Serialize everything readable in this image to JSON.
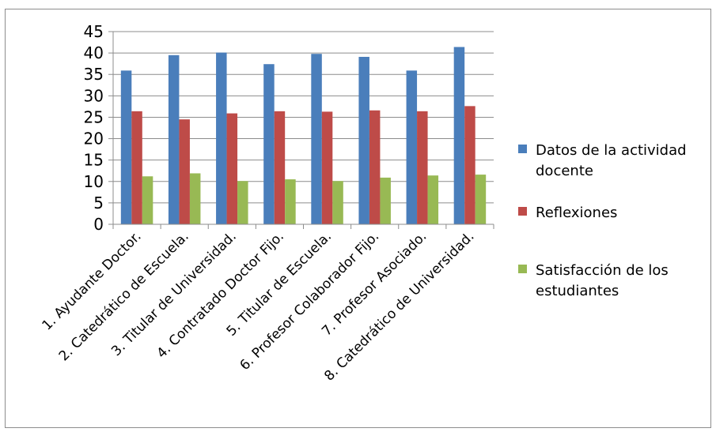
{
  "chart_data": {
    "type": "bar",
    "categories": [
      "1. Ayudante Doctor.",
      "2. Catedrático de Escuela.",
      "3. Titular de Universidad.",
      "4. Contratado Doctor Fijo.",
      "5. Titular de Escuela.",
      "6. Profesor Colaborador Fijo.",
      "7. Profesor Asociado.",
      "8. Catedrático de Universidad."
    ],
    "series": [
      {
        "name": "Datos de la actividad docente",
        "legend_lines": [
          "Datos de la actividad",
          "docente"
        ],
        "color": "#4a7ebb",
        "values": [
          35.9,
          39.5,
          40.1,
          37.4,
          39.8,
          39.1,
          35.9,
          41.4
        ]
      },
      {
        "name": "Reflexiones",
        "legend_lines": [
          "Reflexiones"
        ],
        "color": "#be4b48",
        "values": [
          26.4,
          24.5,
          25.9,
          26.4,
          26.3,
          26.6,
          26.4,
          27.6
        ]
      },
      {
        "name": "Satisfacción de los estudiantes",
        "legend_lines": [
          "Satisfacción de los",
          "estudiantes"
        ],
        "color": "#98b954",
        "values": [
          11.2,
          11.9,
          10.1,
          10.5,
          10.1,
          10.9,
          11.4,
          11.6
        ]
      }
    ],
    "title": "",
    "xlabel": "",
    "ylabel": "",
    "ylim": [
      0,
      45
    ],
    "yticks": [
      0,
      5,
      10,
      15,
      20,
      25,
      30,
      35,
      40,
      45
    ],
    "grid": true,
    "legend_position": "right"
  }
}
